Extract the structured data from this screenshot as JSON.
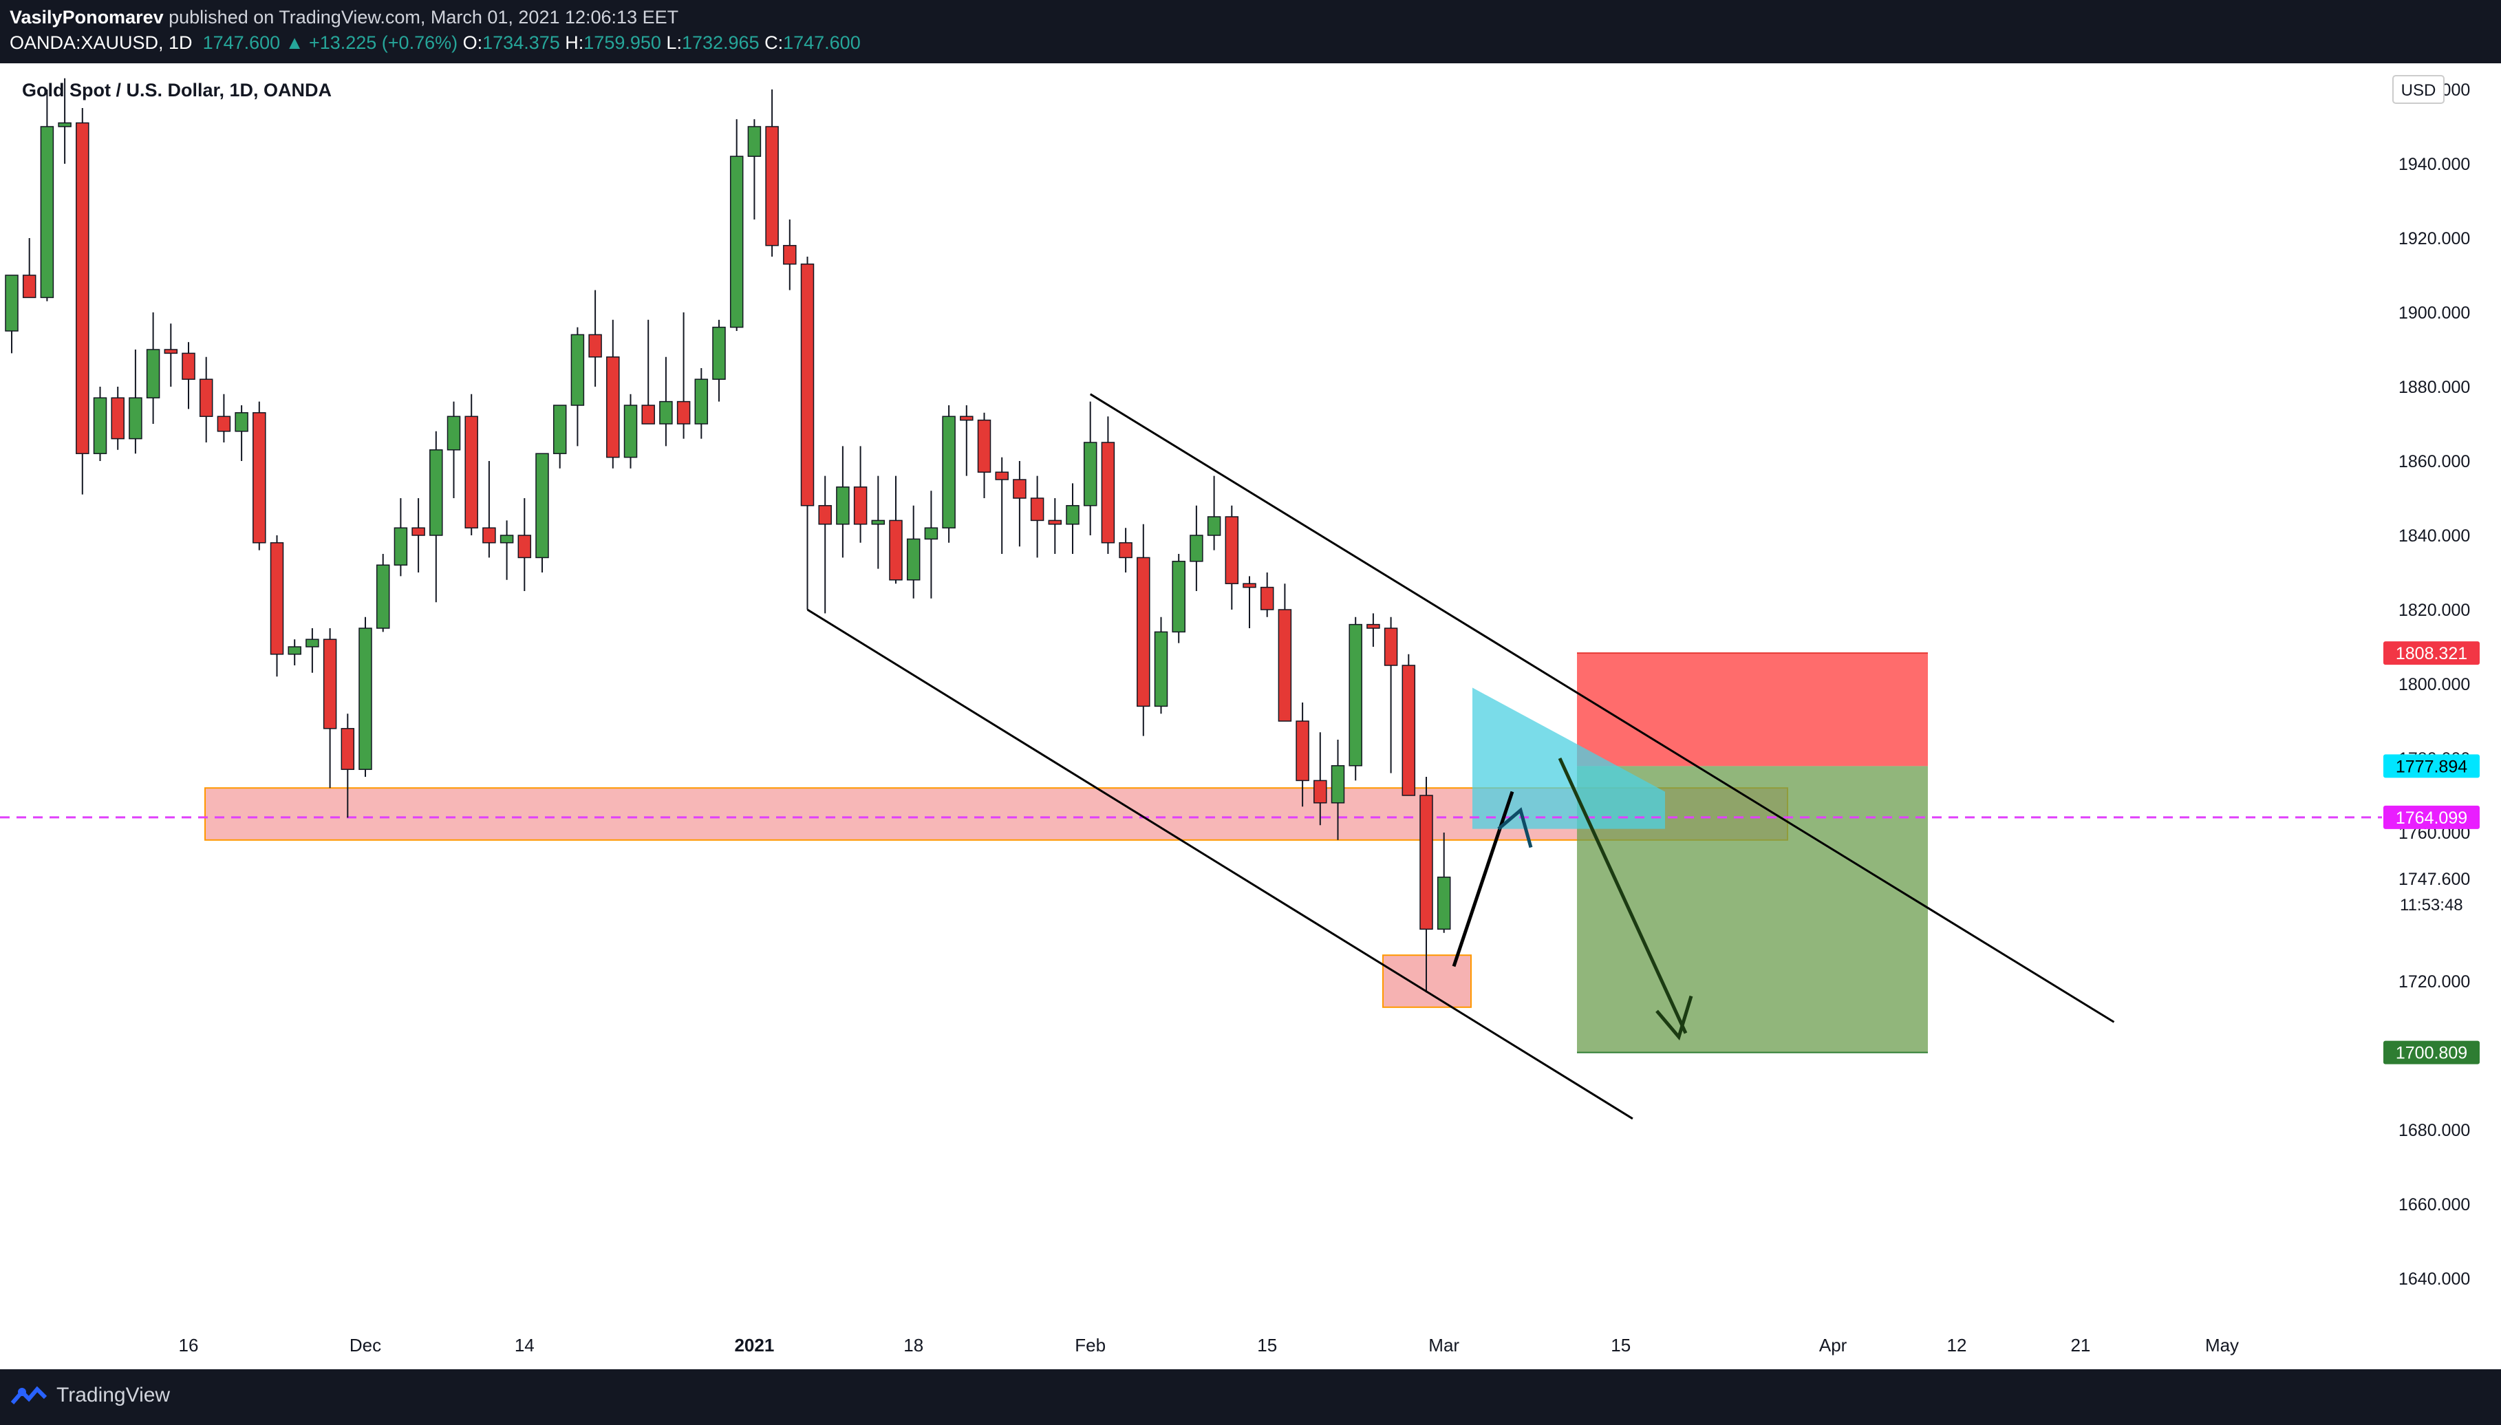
{
  "header": {
    "author": "VasilyPonomarev",
    "published_text": " published on TradingView.com, March 01, 2021 12:06:13 EET",
    "symbol": "OANDA:XAUUSD, 1D",
    "last": "1747.600",
    "change": "▲ +13.225 (+0.76%)",
    "open_label": "O:",
    "open": "1734.375",
    "high_label": "H:",
    "high": "1759.950",
    "low_label": "L:",
    "low": "1732.965",
    "close_label": "C:",
    "close": "1747.600"
  },
  "chart_title": "Gold Spot / U.S. Dollar, 1D, OANDA",
  "currency": "USD",
  "countdown": "11:53:48",
  "footer": {
    "brand": "TradingView"
  },
  "colors": {
    "up": "#43a047",
    "down": "#e53935",
    "zone": "#f5a5a5",
    "zone_border": "#ff9800",
    "stop": "#ff5c5c",
    "target": "#6c9e4f",
    "cyan": "#4dd0e1",
    "magenta": "#e040fb"
  },
  "chart_data": {
    "type": "candlestick",
    "title": "Gold Spot / U.S. Dollar, 1D, OANDA",
    "ylim": [
      1622,
      1962
    ],
    "y_ticks": [
      "1640.000",
      "1660.000",
      "1680.000",
      "1700.000",
      "1720.000",
      "1747.600",
      "1760.000",
      "1780.000",
      "1800.000",
      "1820.000",
      "1840.000",
      "1860.000",
      "1880.000",
      "1900.000",
      "1920.000",
      "1940.000",
      "1960.000"
    ],
    "x_ticks": [
      {
        "label": "16",
        "i": 10
      },
      {
        "label": "Dec",
        "i": 20
      },
      {
        "label": "14",
        "i": 29
      },
      {
        "label": "2021",
        "i": 42
      },
      {
        "label": "18",
        "i": 51
      },
      {
        "label": "Feb",
        "i": 61
      },
      {
        "label": "15",
        "i": 71
      },
      {
        "label": "Mar",
        "i": 81
      },
      {
        "label": "15",
        "i": 91
      },
      {
        "label": "Apr",
        "i": 103
      },
      {
        "label": "12",
        "i": 110
      },
      {
        "label": "21",
        "i": 117
      },
      {
        "label": "May",
        "i": 125
      }
    ],
    "ohlc": [
      [
        1895,
        1910,
        1889,
        1910
      ],
      [
        1910,
        1920,
        1905,
        1904
      ],
      [
        1904,
        1960,
        1903,
        1950
      ],
      [
        1950,
        1963,
        1940,
        1951
      ],
      [
        1951,
        1955,
        1851,
        1862
      ],
      [
        1862,
        1880,
        1860,
        1877
      ],
      [
        1877,
        1880,
        1863,
        1866
      ],
      [
        1866,
        1890,
        1862,
        1877
      ],
      [
        1877,
        1900,
        1870,
        1890
      ],
      [
        1890,
        1897,
        1880,
        1889
      ],
      [
        1889,
        1892,
        1874,
        1882
      ],
      [
        1882,
        1888,
        1865,
        1872
      ],
      [
        1872,
        1878,
        1865,
        1868
      ],
      [
        1868,
        1875,
        1860,
        1873
      ],
      [
        1873,
        1876,
        1836,
        1838
      ],
      [
        1838,
        1840,
        1802,
        1808
      ],
      [
        1808,
        1812,
        1805,
        1810
      ],
      [
        1810,
        1815,
        1803,
        1812
      ],
      [
        1812,
        1815,
        1772,
        1788
      ],
      [
        1788,
        1792,
        1764,
        1777
      ],
      [
        1777,
        1818,
        1775,
        1815
      ],
      [
        1815,
        1835,
        1814,
        1832
      ],
      [
        1832,
        1850,
        1829,
        1842
      ],
      [
        1842,
        1850,
        1830,
        1840
      ],
      [
        1840,
        1868,
        1822,
        1863
      ],
      [
        1863,
        1876,
        1850,
        1872
      ],
      [
        1872,
        1878,
        1840,
        1842
      ],
      [
        1842,
        1860,
        1834,
        1838
      ],
      [
        1838,
        1844,
        1828,
        1840
      ],
      [
        1840,
        1850,
        1825,
        1834
      ],
      [
        1834,
        1862,
        1830,
        1862
      ],
      [
        1862,
        1875,
        1858,
        1875
      ],
      [
        1875,
        1896,
        1864,
        1894
      ],
      [
        1894,
        1906,
        1880,
        1888
      ],
      [
        1888,
        1898,
        1858,
        1861
      ],
      [
        1861,
        1878,
        1858,
        1875
      ],
      [
        1875,
        1898,
        1870,
        1870
      ],
      [
        1870,
        1888,
        1864,
        1876
      ],
      [
        1876,
        1900,
        1866,
        1870
      ],
      [
        1870,
        1885,
        1866,
        1882
      ],
      [
        1882,
        1898,
        1876,
        1896
      ],
      [
        1896,
        1952,
        1895,
        1942
      ],
      [
        1942,
        1952,
        1925,
        1950
      ],
      [
        1950,
        1960,
        1915,
        1918
      ],
      [
        1918,
        1925,
        1906,
        1913
      ],
      [
        1913,
        1915,
        1820,
        1848
      ],
      [
        1848,
        1856,
        1819,
        1843
      ],
      [
        1843,
        1864,
        1834,
        1853
      ],
      [
        1853,
        1864,
        1838,
        1843
      ],
      [
        1843,
        1856,
        1831,
        1844
      ],
      [
        1844,
        1856,
        1827,
        1828
      ],
      [
        1828,
        1848,
        1823,
        1839
      ],
      [
        1839,
        1852,
        1823,
        1842
      ],
      [
        1842,
        1875,
        1838,
        1872
      ],
      [
        1872,
        1875,
        1856,
        1871
      ],
      [
        1871,
        1873,
        1850,
        1857
      ],
      [
        1857,
        1861,
        1835,
        1855
      ],
      [
        1855,
        1860,
        1837,
        1850
      ],
      [
        1850,
        1856,
        1834,
        1844
      ],
      [
        1844,
        1850,
        1835,
        1843
      ],
      [
        1843,
        1854,
        1835,
        1848
      ],
      [
        1848,
        1876,
        1840,
        1865
      ],
      [
        1865,
        1872,
        1835,
        1838
      ],
      [
        1838,
        1842,
        1830,
        1834
      ],
      [
        1834,
        1843,
        1786,
        1794
      ],
      [
        1794,
        1818,
        1792,
        1814
      ],
      [
        1814,
        1835,
        1811,
        1833
      ],
      [
        1833,
        1848,
        1825,
        1840
      ],
      [
        1840,
        1856,
        1836,
        1845
      ],
      [
        1845,
        1848,
        1820,
        1827
      ],
      [
        1827,
        1829,
        1815,
        1826
      ],
      [
        1826,
        1830,
        1818,
        1820
      ],
      [
        1820,
        1827,
        1790,
        1790
      ],
      [
        1790,
        1795,
        1767,
        1774
      ],
      [
        1774,
        1787,
        1762,
        1768
      ],
      [
        1768,
        1785,
        1758,
        1778
      ],
      [
        1778,
        1818,
        1774,
        1816
      ],
      [
        1816,
        1819,
        1810,
        1815
      ],
      [
        1815,
        1818,
        1776,
        1805
      ],
      [
        1805,
        1808,
        1770,
        1770
      ],
      [
        1770,
        1775,
        1717,
        1734
      ],
      [
        1734,
        1760,
        1733,
        1748
      ]
    ],
    "support_zone": {
      "top": 1772,
      "bottom": 1758
    },
    "low_box": {
      "top": 1727,
      "bottom": 1713
    },
    "channel_upper": [
      [
        61,
        1878
      ],
      [
        115,
        1709
      ]
    ],
    "channel_lower": [
      [
        45,
        1820
      ],
      [
        87,
        1683
      ]
    ],
    "dashed_level": 1764.099,
    "position": {
      "entry": 1777.894,
      "stop": 1808.321,
      "target": 1700.809
    },
    "price_labels": [
      {
        "value": 1808.321,
        "text": "1808.321",
        "bg": "#f23645",
        "fg": "#ffffff"
      },
      {
        "value": 1777.894,
        "text": "1777.894",
        "bg": "#00e5ff",
        "fg": "#000000"
      },
      {
        "value": 1764.099,
        "text": "1764.099",
        "bg": "#e91eff",
        "fg": "#ffffff"
      },
      {
        "value": 1700.809,
        "text": "1700.809",
        "bg": "#2e7d32",
        "fg": "#ffffff"
      }
    ]
  }
}
